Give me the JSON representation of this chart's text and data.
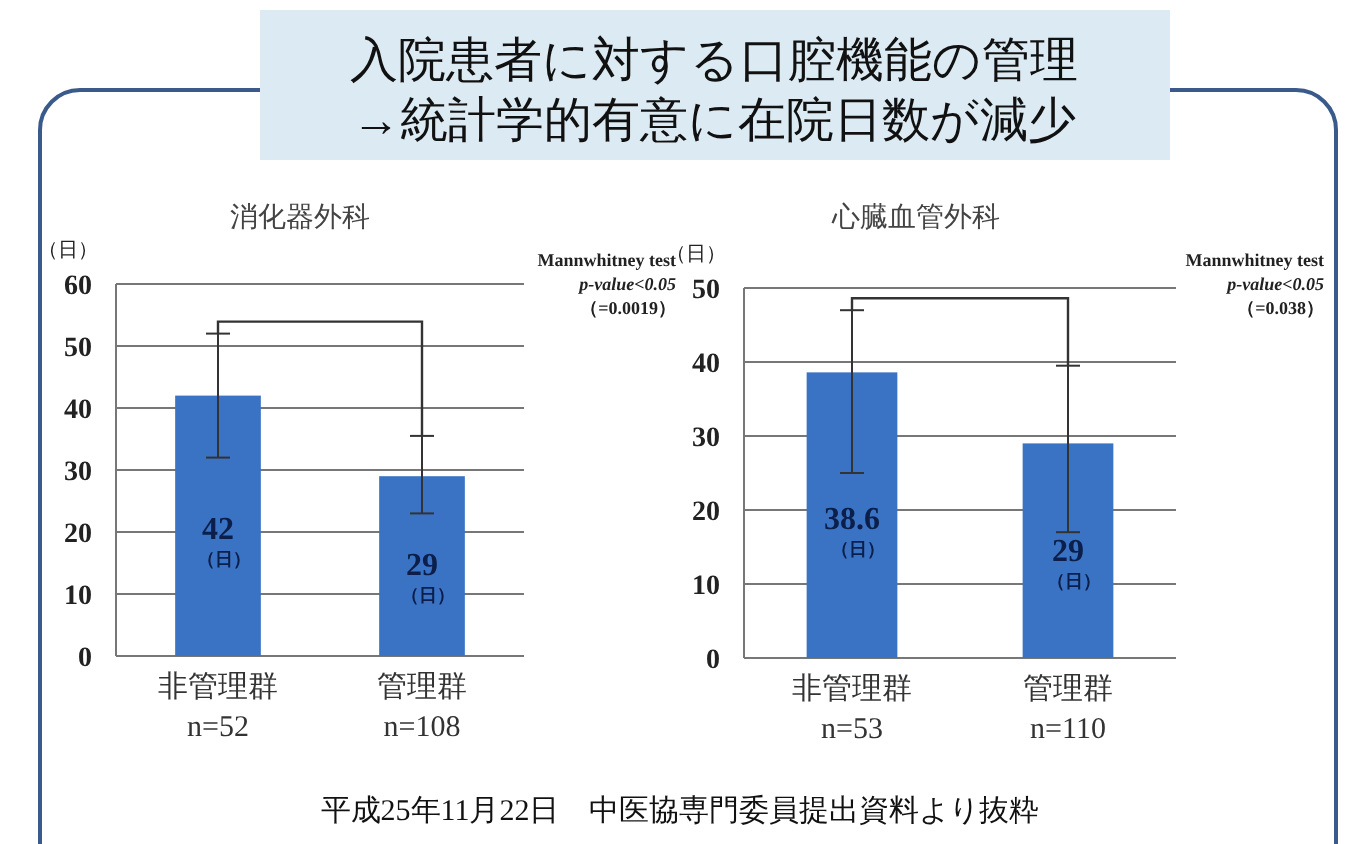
{
  "chart_data": [
    {
      "type": "bar",
      "title": "消化器外科",
      "ylabel": "（日）",
      "categories": [
        "非管理群\nn=52",
        "管理群\nn=108"
      ],
      "values": [
        42,
        29
      ],
      "errors": [
        [
          32,
          52
        ],
        [
          23,
          35.5
        ]
      ],
      "value_labels": [
        "42\n（日）",
        "29\n（日）"
      ],
      "color": "#3b73c4",
      "ylim": [
        0,
        60
      ],
      "yticks": [
        0,
        10,
        20,
        30,
        40,
        50,
        60
      ],
      "grid": "y",
      "annotations": [
        "Mannwhitney test",
        "p-value<0.05",
        "（=0.0019）"
      ]
    },
    {
      "type": "bar",
      "title": "心臓血管外科",
      "ylabel": "（日）",
      "categories": [
        "非管理群\nn=53",
        "管理群\nn=110"
      ],
      "values": [
        38.6,
        29
      ],
      "errors": [
        [
          25,
          47
        ],
        [
          17,
          39.5
        ]
      ],
      "value_labels": [
        "38.6\n（日）",
        "29\n（日）"
      ],
      "color": "#3b73c4",
      "ylim": [
        0,
        50
      ],
      "yticks": [
        0,
        10,
        20,
        30,
        40,
        50
      ],
      "grid": "y",
      "annotations": [
        "Mannwhitney test",
        "p-value<0.05",
        "（=0.038）"
      ]
    },
    {
      "type": "other",
      "title": "入院患者に対する口腔機能の管理\n→統計学的有意に在院日数が減少",
      "annotations": [
        "平成25年11月22日　中医協専門委員提出資料より抜粋"
      ]
    }
  ]
}
